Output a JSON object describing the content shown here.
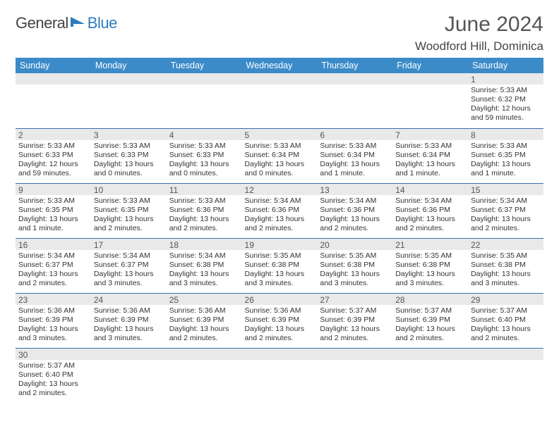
{
  "brand": {
    "part1": "General",
    "part2": "Blue"
  },
  "title": "June 2024",
  "location": "Woodford Hill, Dominica",
  "colors": {
    "header_bg": "#3b8bc9",
    "header_text": "#ffffff",
    "daynum_bg": "#e9e9e9",
    "row_border": "#3b6fa8",
    "title_color": "#555555",
    "body_text": "#333333"
  },
  "day_names": [
    "Sunday",
    "Monday",
    "Tuesday",
    "Wednesday",
    "Thursday",
    "Friday",
    "Saturday"
  ],
  "weeks": [
    [
      {
        "empty": true
      },
      {
        "empty": true
      },
      {
        "empty": true
      },
      {
        "empty": true
      },
      {
        "empty": true
      },
      {
        "empty": true
      },
      {
        "day": "1",
        "sunrise": "Sunrise: 5:33 AM",
        "sunset": "Sunset: 6:32 PM",
        "daylight": "Daylight: 12 hours and 59 minutes."
      }
    ],
    [
      {
        "day": "2",
        "sunrise": "Sunrise: 5:33 AM",
        "sunset": "Sunset: 6:33 PM",
        "daylight": "Daylight: 12 hours and 59 minutes."
      },
      {
        "day": "3",
        "sunrise": "Sunrise: 5:33 AM",
        "sunset": "Sunset: 6:33 PM",
        "daylight": "Daylight: 13 hours and 0 minutes."
      },
      {
        "day": "4",
        "sunrise": "Sunrise: 5:33 AM",
        "sunset": "Sunset: 6:33 PM",
        "daylight": "Daylight: 13 hours and 0 minutes."
      },
      {
        "day": "5",
        "sunrise": "Sunrise: 5:33 AM",
        "sunset": "Sunset: 6:34 PM",
        "daylight": "Daylight: 13 hours and 0 minutes."
      },
      {
        "day": "6",
        "sunrise": "Sunrise: 5:33 AM",
        "sunset": "Sunset: 6:34 PM",
        "daylight": "Daylight: 13 hours and 1 minute."
      },
      {
        "day": "7",
        "sunrise": "Sunrise: 5:33 AM",
        "sunset": "Sunset: 6:34 PM",
        "daylight": "Daylight: 13 hours and 1 minute."
      },
      {
        "day": "8",
        "sunrise": "Sunrise: 5:33 AM",
        "sunset": "Sunset: 6:35 PM",
        "daylight": "Daylight: 13 hours and 1 minute."
      }
    ],
    [
      {
        "day": "9",
        "sunrise": "Sunrise: 5:33 AM",
        "sunset": "Sunset: 6:35 PM",
        "daylight": "Daylight: 13 hours and 1 minute."
      },
      {
        "day": "10",
        "sunrise": "Sunrise: 5:33 AM",
        "sunset": "Sunset: 6:35 PM",
        "daylight": "Daylight: 13 hours and 2 minutes."
      },
      {
        "day": "11",
        "sunrise": "Sunrise: 5:33 AM",
        "sunset": "Sunset: 6:36 PM",
        "daylight": "Daylight: 13 hours and 2 minutes."
      },
      {
        "day": "12",
        "sunrise": "Sunrise: 5:34 AM",
        "sunset": "Sunset: 6:36 PM",
        "daylight": "Daylight: 13 hours and 2 minutes."
      },
      {
        "day": "13",
        "sunrise": "Sunrise: 5:34 AM",
        "sunset": "Sunset: 6:36 PM",
        "daylight": "Daylight: 13 hours and 2 minutes."
      },
      {
        "day": "14",
        "sunrise": "Sunrise: 5:34 AM",
        "sunset": "Sunset: 6:36 PM",
        "daylight": "Daylight: 13 hours and 2 minutes."
      },
      {
        "day": "15",
        "sunrise": "Sunrise: 5:34 AM",
        "sunset": "Sunset: 6:37 PM",
        "daylight": "Daylight: 13 hours and 2 minutes."
      }
    ],
    [
      {
        "day": "16",
        "sunrise": "Sunrise: 5:34 AM",
        "sunset": "Sunset: 6:37 PM",
        "daylight": "Daylight: 13 hours and 2 minutes."
      },
      {
        "day": "17",
        "sunrise": "Sunrise: 5:34 AM",
        "sunset": "Sunset: 6:37 PM",
        "daylight": "Daylight: 13 hours and 3 minutes."
      },
      {
        "day": "18",
        "sunrise": "Sunrise: 5:34 AM",
        "sunset": "Sunset: 6:38 PM",
        "daylight": "Daylight: 13 hours and 3 minutes."
      },
      {
        "day": "19",
        "sunrise": "Sunrise: 5:35 AM",
        "sunset": "Sunset: 6:38 PM",
        "daylight": "Daylight: 13 hours and 3 minutes."
      },
      {
        "day": "20",
        "sunrise": "Sunrise: 5:35 AM",
        "sunset": "Sunset: 6:38 PM",
        "daylight": "Daylight: 13 hours and 3 minutes."
      },
      {
        "day": "21",
        "sunrise": "Sunrise: 5:35 AM",
        "sunset": "Sunset: 6:38 PM",
        "daylight": "Daylight: 13 hours and 3 minutes."
      },
      {
        "day": "22",
        "sunrise": "Sunrise: 5:35 AM",
        "sunset": "Sunset: 6:38 PM",
        "daylight": "Daylight: 13 hours and 3 minutes."
      }
    ],
    [
      {
        "day": "23",
        "sunrise": "Sunrise: 5:36 AM",
        "sunset": "Sunset: 6:39 PM",
        "daylight": "Daylight: 13 hours and 3 minutes."
      },
      {
        "day": "24",
        "sunrise": "Sunrise: 5:36 AM",
        "sunset": "Sunset: 6:39 PM",
        "daylight": "Daylight: 13 hours and 3 minutes."
      },
      {
        "day": "25",
        "sunrise": "Sunrise: 5:36 AM",
        "sunset": "Sunset: 6:39 PM",
        "daylight": "Daylight: 13 hours and 2 minutes."
      },
      {
        "day": "26",
        "sunrise": "Sunrise: 5:36 AM",
        "sunset": "Sunset: 6:39 PM",
        "daylight": "Daylight: 13 hours and 2 minutes."
      },
      {
        "day": "27",
        "sunrise": "Sunrise: 5:37 AM",
        "sunset": "Sunset: 6:39 PM",
        "daylight": "Daylight: 13 hours and 2 minutes."
      },
      {
        "day": "28",
        "sunrise": "Sunrise: 5:37 AM",
        "sunset": "Sunset: 6:39 PM",
        "daylight": "Daylight: 13 hours and 2 minutes."
      },
      {
        "day": "29",
        "sunrise": "Sunrise: 5:37 AM",
        "sunset": "Sunset: 6:40 PM",
        "daylight": "Daylight: 13 hours and 2 minutes."
      }
    ],
    [
      {
        "day": "30",
        "sunrise": "Sunrise: 5:37 AM",
        "sunset": "Sunset: 6:40 PM",
        "daylight": "Daylight: 13 hours and 2 minutes."
      },
      {
        "empty": true
      },
      {
        "empty": true
      },
      {
        "empty": true
      },
      {
        "empty": true
      },
      {
        "empty": true
      },
      {
        "empty": true
      }
    ]
  ]
}
